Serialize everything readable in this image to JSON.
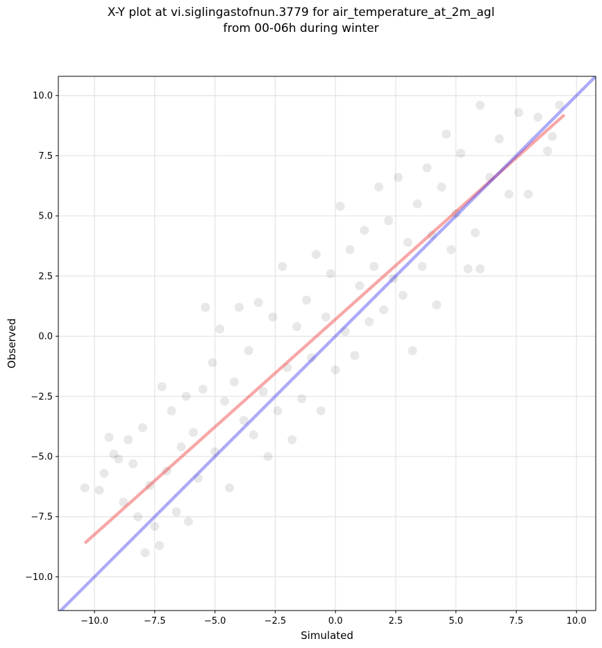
{
  "figure": {
    "title_line1": "X-Y plot at vi.siglingastofnun.3779 for air_temperature_at_2m_agl",
    "title_line2": "from 00-06h during winter"
  },
  "chart_data": {
    "type": "scatter",
    "xlabel": "Simulated",
    "ylabel": "Observed",
    "xlim": [
      -11.5,
      10.8
    ],
    "ylim": [
      -11.4,
      10.8
    ],
    "xticks": [
      -10.0,
      -7.5,
      -5.0,
      -2.5,
      0.0,
      2.5,
      5.0,
      7.5,
      10.0
    ],
    "yticks": [
      -10.0,
      -7.5,
      -5.0,
      -2.5,
      0.0,
      2.5,
      5.0,
      7.5,
      10.0
    ],
    "xtick_labels": [
      "−10.0",
      "−7.5",
      "−5.0",
      "−2.5",
      "0.0",
      "2.5",
      "5.0",
      "7.5",
      "10.0"
    ],
    "ytick_labels": [
      "−10.0",
      "−7.5",
      "−5.0",
      "−2.5",
      "0.0",
      "2.5",
      "5.0",
      "7.5",
      "10.0"
    ],
    "grid": true,
    "point_color": "#000000",
    "point_alpha": 0.09,
    "points_sample": [
      [
        -10.4,
        -6.3
      ],
      [
        -9.8,
        -6.4
      ],
      [
        -9.6,
        -5.7
      ],
      [
        -9.4,
        -4.2
      ],
      [
        -9.2,
        -4.9
      ],
      [
        -9.0,
        -5.1
      ],
      [
        -8.8,
        -6.9
      ],
      [
        -8.6,
        -4.3
      ],
      [
        -8.4,
        -5.3
      ],
      [
        -8.2,
        -7.5
      ],
      [
        -8.0,
        -3.8
      ],
      [
        -7.9,
        -9.0
      ],
      [
        -7.7,
        -6.2
      ],
      [
        -7.5,
        -7.9
      ],
      [
        -7.3,
        -8.7
      ],
      [
        -7.2,
        -2.1
      ],
      [
        -7.0,
        -5.6
      ],
      [
        -6.8,
        -3.1
      ],
      [
        -6.6,
        -7.3
      ],
      [
        -6.4,
        -4.6
      ],
      [
        -6.2,
        -2.5
      ],
      [
        -6.1,
        -7.7
      ],
      [
        -5.9,
        -4.0
      ],
      [
        -5.7,
        -5.9
      ],
      [
        -5.5,
        -2.2
      ],
      [
        -5.4,
        1.2
      ],
      [
        -5.1,
        -1.1
      ],
      [
        -5.0,
        -4.8
      ],
      [
        -4.8,
        0.3
      ],
      [
        -4.6,
        -2.7
      ],
      [
        -4.4,
        -6.3
      ],
      [
        -4.2,
        -1.9
      ],
      [
        -4.0,
        1.2
      ],
      [
        -3.8,
        -3.5
      ],
      [
        -3.6,
        -0.6
      ],
      [
        -3.4,
        -4.1
      ],
      [
        -3.2,
        1.4
      ],
      [
        -3.0,
        -2.3
      ],
      [
        -2.8,
        -5.0
      ],
      [
        -2.6,
        0.8
      ],
      [
        -2.4,
        -3.1
      ],
      [
        -2.2,
        2.9
      ],
      [
        -2.0,
        -1.3
      ],
      [
        -1.8,
        -4.3
      ],
      [
        -1.6,
        0.4
      ],
      [
        -1.4,
        -2.6
      ],
      [
        -1.2,
        1.5
      ],
      [
        -1.0,
        -0.9
      ],
      [
        -0.8,
        3.4
      ],
      [
        -0.6,
        -3.1
      ],
      [
        -0.4,
        0.8
      ],
      [
        -0.2,
        2.6
      ],
      [
        0.0,
        -1.4
      ],
      [
        0.2,
        5.4
      ],
      [
        0.4,
        0.2
      ],
      [
        0.6,
        3.6
      ],
      [
        0.8,
        -0.8
      ],
      [
        1.0,
        2.1
      ],
      [
        1.2,
        4.4
      ],
      [
        1.4,
        0.6
      ],
      [
        1.6,
        2.9
      ],
      [
        1.8,
        6.2
      ],
      [
        2.0,
        1.1
      ],
      [
        2.2,
        4.8
      ],
      [
        2.4,
        2.4
      ],
      [
        2.6,
        6.6
      ],
      [
        2.8,
        1.7
      ],
      [
        3.0,
        3.9
      ],
      [
        3.2,
        -0.6
      ],
      [
        3.4,
        5.5
      ],
      [
        3.6,
        2.9
      ],
      [
        3.8,
        7.0
      ],
      [
        4.0,
        4.2
      ],
      [
        4.2,
        1.3
      ],
      [
        4.4,
        6.2
      ],
      [
        4.6,
        8.4
      ],
      [
        4.8,
        3.6
      ],
      [
        5.0,
        5.1
      ],
      [
        5.2,
        7.6
      ],
      [
        5.5,
        2.8
      ],
      [
        5.8,
        4.3
      ],
      [
        6.0,
        2.8
      ],
      [
        6.0,
        9.6
      ],
      [
        6.4,
        6.6
      ],
      [
        6.8,
        8.2
      ],
      [
        7.2,
        5.9
      ],
      [
        7.6,
        9.3
      ],
      [
        8.0,
        5.9
      ],
      [
        8.4,
        9.1
      ],
      [
        8.8,
        7.7
      ],
      [
        9.0,
        8.3
      ],
      [
        9.3,
        9.6
      ]
    ],
    "lines": [
      {
        "role": "regression",
        "color": "#ef3b3b",
        "opacity": 0.45,
        "x": [
          -10.4,
          9.5
        ],
        "y": [
          -8.6,
          9.2
        ]
      },
      {
        "role": "identity",
        "color": "#2222ee",
        "opacity": 0.38,
        "x": [
          -11.5,
          10.8
        ],
        "y": [
          -11.5,
          10.8
        ]
      }
    ]
  }
}
